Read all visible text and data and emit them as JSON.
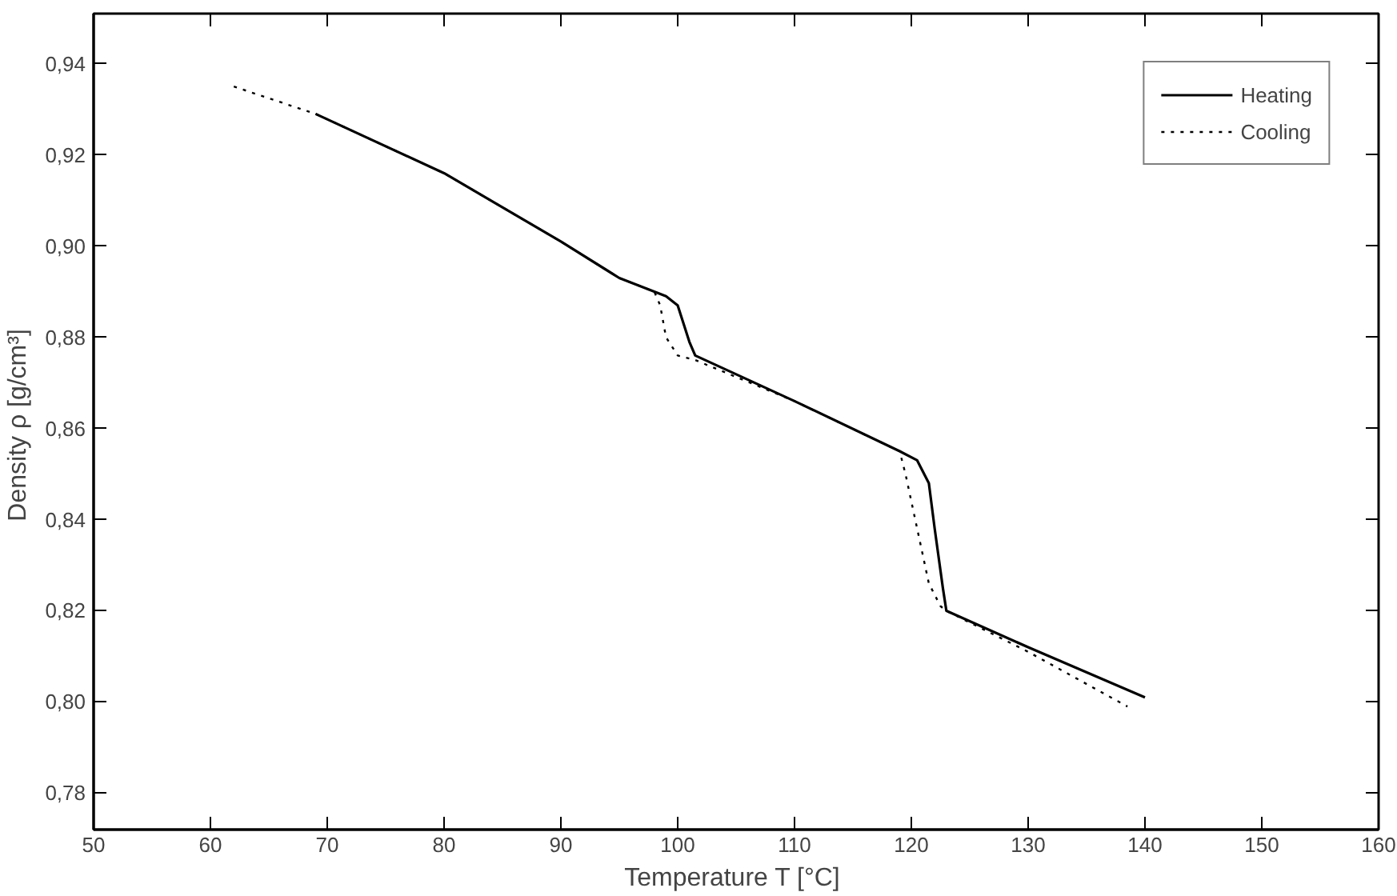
{
  "chart_data": {
    "type": "line",
    "xlabel": "Temperature T  [°C]",
    "ylabel": "Density ρ  [g/cm³]",
    "xlim": [
      50,
      160
    ],
    "ylim": [
      0.772,
      0.951
    ],
    "xticks": [
      50,
      60,
      70,
      80,
      90,
      100,
      110,
      120,
      130,
      140,
      150,
      160
    ],
    "yticks": [
      {
        "value": 0.78,
        "label": "0,78"
      },
      {
        "value": 0.8,
        "label": "0,80"
      },
      {
        "value": 0.82,
        "label": "0,82"
      },
      {
        "value": 0.84,
        "label": "0,84"
      },
      {
        "value": 0.86,
        "label": "0,86"
      },
      {
        "value": 0.88,
        "label": "0,88"
      },
      {
        "value": 0.9,
        "label": "0,90"
      },
      {
        "value": 0.92,
        "label": "0,92"
      },
      {
        "value": 0.94,
        "label": "0,94"
      }
    ],
    "grid": false,
    "legend": "top right",
    "series": [
      {
        "name": "Heating",
        "color": "#000000",
        "line_style": "solid",
        "x": [
          69,
          80,
          90,
          95,
          99,
          100,
          101,
          101.5,
          110,
          119,
          120.5,
          121.5,
          122,
          122.7,
          123,
          130,
          140
        ],
        "values": [
          0.929,
          0.916,
          0.901,
          0.893,
          0.889,
          0.887,
          0.879,
          0.876,
          0.866,
          0.855,
          0.853,
          0.848,
          0.838,
          0.825,
          0.82,
          0.812,
          0.801
        ]
      },
      {
        "name": "Cooling",
        "color": "#000000",
        "line_style": "dotted",
        "x": [
          62,
          69,
          80,
          90,
          95,
          98,
          98.5,
          99,
          100,
          101.5,
          110,
          119,
          119.5,
          120.5,
          121.5,
          122.5,
          123,
          130,
          138.5
        ],
        "values": [
          0.935,
          0.929,
          0.916,
          0.901,
          0.893,
          0.89,
          0.887,
          0.88,
          0.876,
          0.875,
          0.866,
          0.855,
          0.85,
          0.838,
          0.826,
          0.821,
          0.82,
          0.811,
          0.799
        ]
      }
    ]
  }
}
